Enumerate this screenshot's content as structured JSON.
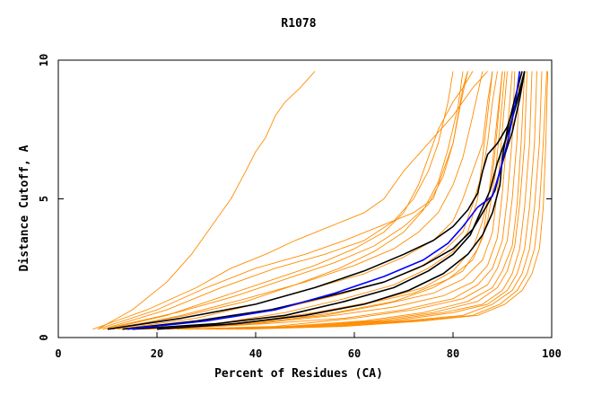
{
  "chart_data": {
    "type": "line",
    "title": "R1078",
    "xlabel": "Percent of Residues (CA)",
    "ylabel": "Distance Cutoff, A",
    "xlim": [
      0,
      100
    ],
    "ylim": [
      0,
      10
    ],
    "x_ticks": [
      "0",
      "20",
      "40",
      "60",
      "80",
      "100"
    ],
    "y_ticks": [
      "0",
      "5",
      "10"
    ],
    "grid": false,
    "legend": "none",
    "colors": {
      "models": "#ff8c00",
      "highlight_black": "#000000",
      "highlight_blue": "#0000ff"
    },
    "series_count_note": "",
    "background_series": [
      {
        "x": [
          8,
          15,
          22,
          27,
          31,
          35,
          38,
          40,
          42,
          44,
          46,
          49,
          52
        ],
        "y": [
          0.3,
          1,
          2,
          3,
          4,
          5,
          6,
          6.7,
          7.2,
          8,
          8.5,
          9,
          9.6
        ]
      },
      {
        "x": [
          7,
          18,
          28,
          35,
          42,
          48,
          55,
          62,
          66,
          68,
          70,
          75,
          80,
          84,
          87
        ],
        "y": [
          0.3,
          1,
          1.8,
          2.5,
          3,
          3.5,
          4,
          4.5,
          5,
          5.5,
          6,
          7,
          8,
          9,
          9.6
        ]
      },
      {
        "x": [
          8,
          20,
          30,
          40,
          50,
          58,
          65,
          72,
          76,
          78,
          80,
          81,
          82,
          83
        ],
        "y": [
          0.3,
          1,
          1.8,
          2.5,
          3,
          3.5,
          4,
          4.5,
          5,
          6,
          7,
          8,
          9,
          9.6
        ]
      },
      {
        "x": [
          9,
          22,
          33,
          44,
          54,
          62,
          68,
          72,
          75,
          77,
          79,
          80
        ],
        "y": [
          0.3,
          1,
          1.8,
          2.5,
          3,
          3.5,
          4.2,
          5,
          6,
          7,
          8.5,
          9.6
        ]
      },
      {
        "x": [
          10,
          22,
          32,
          42,
          52,
          60,
          66,
          70,
          73,
          75,
          77,
          80,
          82,
          84
        ],
        "y": [
          0.3,
          0.8,
          1.4,
          2,
          2.6,
          3.2,
          3.8,
          4.5,
          5.5,
          6.5,
          7.5,
          8.5,
          9,
          9.6
        ]
      },
      {
        "x": [
          11,
          25,
          38,
          50,
          60,
          68,
          73,
          77,
          80,
          82,
          84,
          86
        ],
        "y": [
          0.3,
          0.8,
          1.4,
          2,
          2.6,
          3.2,
          3.8,
          4.5,
          5.5,
          6.5,
          8,
          9.6
        ]
      },
      {
        "x": [
          12,
          28,
          40,
          52,
          62,
          70,
          76,
          80,
          82,
          84,
          86,
          87,
          88
        ],
        "y": [
          0.3,
          0.7,
          1.2,
          1.8,
          2.3,
          2.9,
          3.5,
          4.2,
          5,
          6,
          7,
          8.5,
          9.6
        ]
      },
      {
        "x": [
          13,
          30,
          44,
          56,
          66,
          73,
          78,
          82,
          84,
          86,
          87,
          88,
          89
        ],
        "y": [
          0.3,
          0.6,
          1,
          1.5,
          2,
          2.5,
          3.1,
          3.8,
          4.8,
          6,
          7,
          8.5,
          9.6
        ]
      },
      {
        "x": [
          14,
          32,
          46,
          58,
          68,
          75,
          80,
          83,
          85,
          86,
          87,
          88
        ],
        "y": [
          0.3,
          0.5,
          0.9,
          1.4,
          1.9,
          2.5,
          3.1,
          3.8,
          5,
          6.5,
          8,
          9.6
        ]
      },
      {
        "x": [
          16,
          35,
          50,
          62,
          72,
          79,
          84,
          86,
          87,
          88,
          89,
          90
        ],
        "y": [
          0.3,
          0.5,
          0.8,
          1.2,
          1.6,
          2.1,
          2.8,
          3.6,
          4.8,
          6.3,
          8,
          9.6
        ]
      },
      {
        "x": [
          18,
          38,
          54,
          66,
          76,
          82,
          86,
          88,
          89,
          90,
          91
        ],
        "y": [
          0.3,
          0.5,
          0.8,
          1.2,
          1.6,
          2.1,
          2.8,
          3.8,
          5.3,
          7.5,
          9.6
        ]
      },
      {
        "x": [
          20,
          40,
          56,
          68,
          78,
          84,
          87,
          89,
          90,
          91,
          92
        ],
        "y": [
          0.3,
          0.5,
          0.8,
          1.1,
          1.5,
          2,
          2.6,
          3.6,
          5.2,
          7.4,
          9.6
        ]
      },
      {
        "x": [
          22,
          42,
          58,
          70,
          80,
          85,
          88,
          90,
          91,
          92,
          92.5
        ],
        "y": [
          0.3,
          0.5,
          0.7,
          1,
          1.4,
          1.9,
          2.5,
          3.5,
          5,
          7.2,
          9.6
        ]
      },
      {
        "x": [
          24,
          44,
          60,
          72,
          82,
          87,
          89,
          91,
          92,
          93,
          93.5
        ],
        "y": [
          0.3,
          0.4,
          0.7,
          1,
          1.4,
          1.9,
          2.5,
          3.5,
          5,
          7.2,
          9.6
        ]
      },
      {
        "x": [
          26,
          46,
          62,
          74,
          83,
          88,
          90,
          92,
          93,
          93.8,
          94.5
        ],
        "y": [
          0.3,
          0.4,
          0.6,
          0.9,
          1.3,
          1.8,
          2.4,
          3.3,
          4.8,
          7,
          9.6
        ]
      },
      {
        "x": [
          28,
          48,
          64,
          76,
          85,
          89,
          91,
          92.5,
          93.5,
          94.5,
          95
        ],
        "y": [
          0.3,
          0.4,
          0.6,
          0.9,
          1.3,
          1.8,
          2.4,
          3.3,
          4.8,
          7,
          9.6
        ]
      },
      {
        "x": [
          30,
          50,
          66,
          78,
          86,
          90,
          92,
          93.5,
          94.5,
          95.5,
          96
        ],
        "y": [
          0.3,
          0.4,
          0.6,
          0.9,
          1.2,
          1.7,
          2.3,
          3.2,
          4.7,
          7,
          9.6
        ]
      },
      {
        "x": [
          32,
          52,
          68,
          80,
          87,
          91,
          93,
          94.5,
          95.5,
          96.5,
          97
        ],
        "y": [
          0.3,
          0.4,
          0.6,
          0.9,
          1.2,
          1.7,
          2.3,
          3.2,
          4.7,
          7,
          9.6
        ]
      },
      {
        "x": [
          34,
          54,
          70,
          82,
          88,
          92,
          94,
          95.5,
          96.5,
          97.5,
          98
        ],
        "y": [
          0.3,
          0.4,
          0.6,
          0.8,
          1.2,
          1.7,
          2.3,
          3.2,
          4.7,
          7,
          9.6
        ]
      },
      {
        "x": [
          36,
          56,
          72,
          84,
          89.5,
          93,
          95,
          96.5,
          97.5,
          98.3,
          99
        ],
        "y": [
          0.3,
          0.4,
          0.6,
          0.8,
          1.2,
          1.7,
          2.3,
          3.2,
          4.7,
          7,
          9.6
        ]
      },
      {
        "x": [
          38,
          58,
          74,
          85,
          90.5,
          94,
          96,
          97.5,
          98.3,
          98.8,
          99.2
        ],
        "y": [
          0.3,
          0.4,
          0.6,
          0.8,
          1.2,
          1.7,
          2.3,
          3.2,
          4.7,
          7,
          9.6
        ]
      },
      {
        "x": [
          15,
          36,
          52,
          64,
          74,
          80,
          84,
          86,
          88,
          89,
          90
        ],
        "y": [
          0.3,
          0.5,
          0.9,
          1.3,
          1.8,
          2.4,
          3.2,
          4.2,
          5.8,
          7.6,
          9.6
        ]
      },
      {
        "x": [
          17,
          40,
          56,
          68,
          76,
          82,
          85,
          87,
          88.5,
          89.5,
          90.5
        ],
        "y": [
          0.3,
          0.5,
          0.9,
          1.3,
          1.8,
          2.4,
          3.2,
          4.2,
          5.8,
          7.6,
          9.6
        ]
      },
      {
        "x": [
          10,
          26,
          38,
          48,
          57,
          64,
          70,
          74,
          77,
          79,
          81,
          82
        ],
        "y": [
          0.3,
          0.8,
          1.3,
          1.9,
          2.5,
          3.1,
          3.8,
          4.6,
          5.6,
          6.8,
          8.3,
          9.6
        ]
      },
      {
        "x": [
          9,
          24,
          36,
          46,
          56,
          64,
          70,
          75,
          78,
          80,
          81.5,
          83
        ],
        "y": [
          0.3,
          0.9,
          1.5,
          2.1,
          2.7,
          3.3,
          4,
          4.8,
          5.8,
          7,
          8.4,
          9.6
        ]
      }
    ],
    "highlight_series": [
      {
        "color": "#000000",
        "x": [
          10,
          25,
          40,
          52,
          62,
          70,
          76,
          80,
          83,
          85,
          86,
          87,
          89,
          91,
          93,
          94.5
        ],
        "y": [
          0.3,
          0.7,
          1.2,
          1.8,
          2.4,
          3,
          3.5,
          4,
          4.6,
          5.2,
          6,
          6.6,
          7,
          7.6,
          8.6,
          9.6
        ]
      },
      {
        "color": "#000000",
        "x": [
          13,
          28,
          43,
          55,
          66,
          74,
          80,
          84,
          87,
          88.5,
          89.5,
          90.5,
          92,
          93.5,
          94.5
        ],
        "y": [
          0.3,
          0.6,
          1,
          1.5,
          2,
          2.6,
          3.2,
          3.9,
          4.8,
          5.3,
          6,
          6.6,
          7.4,
          8.6,
          9.6
        ]
      },
      {
        "color": "#000000",
        "x": [
          15,
          32,
          46,
          58,
          68,
          75,
          80,
          83.5,
          85.5,
          87.5,
          89,
          91,
          93,
          94.5
        ],
        "y": [
          0.3,
          0.5,
          0.8,
          1.3,
          1.8,
          2.4,
          3,
          3.7,
          4.5,
          5.3,
          6.3,
          7.3,
          8.5,
          9.6
        ]
      },
      {
        "color": "#000000",
        "x": [
          20,
          36,
          50,
          62,
          71,
          78,
          83,
          86,
          88,
          89.5,
          90,
          91,
          92.5,
          94
        ],
        "y": [
          0.3,
          0.5,
          0.8,
          1.2,
          1.7,
          2.3,
          3,
          3.7,
          4.5,
          5.5,
          6.5,
          7.5,
          8.6,
          9.6
        ]
      },
      {
        "color": "#0000ff",
        "x": [
          14,
          30,
          44,
          56,
          66,
          74,
          79,
          82,
          85,
          88,
          89.5,
          91,
          92.5,
          93.5
        ],
        "y": [
          0.3,
          0.6,
          1,
          1.6,
          2.2,
          2.8,
          3.4,
          4,
          4.7,
          5.1,
          6,
          7,
          8.3,
          9.6
        ]
      }
    ]
  }
}
